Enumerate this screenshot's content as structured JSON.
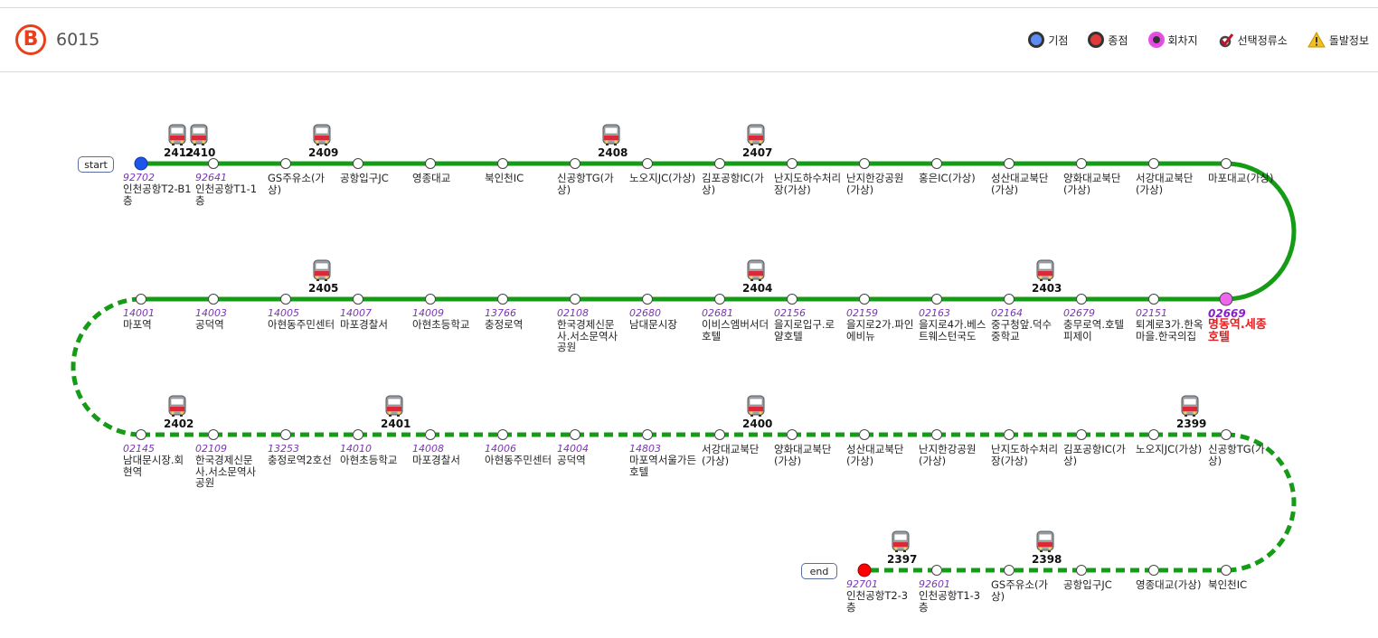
{
  "header": {
    "logo_letter": "B",
    "route_number": "6015"
  },
  "legend": [
    {
      "label": "기점",
      "icon": "start-point-icon",
      "color": "#5c8df5"
    },
    {
      "label": "종점",
      "icon": "end-point-icon",
      "color": "#e03a3a"
    },
    {
      "label": "회차지",
      "icon": "turnaround-icon",
      "color": "#e84ee8"
    },
    {
      "label": "선택정류소",
      "icon": "selected-stop-icon",
      "color": "#c0142a"
    },
    {
      "label": "돌발정보",
      "icon": "warning-icon",
      "color": "#f0c020"
    }
  ],
  "markers": {
    "start": "start",
    "end": "end"
  },
  "colors": {
    "route_line": "#159b15",
    "start_stop": "#1c56e8",
    "end_stop": "#ff0000",
    "turn_stop": "#ee66ee"
  },
  "rows": [
    {
      "stops": [
        {
          "code": "92702",
          "name": "인천공항T2-B1층",
          "type": "start"
        },
        {
          "code": "92641",
          "name": "인천공항T1-1층"
        },
        {
          "code": "",
          "name": "GS주유소(가상)"
        },
        {
          "code": "",
          "name": "공항입구JC"
        },
        {
          "code": "",
          "name": "영종대교"
        },
        {
          "code": "",
          "name": "북인천IC"
        },
        {
          "code": "",
          "name": "신공항TG(가상)"
        },
        {
          "code": "",
          "name": "노오지JC(가상)"
        },
        {
          "code": "",
          "name": "김포공항IC(가상)"
        },
        {
          "code": "",
          "name": "난지도하수처리장(가상)"
        },
        {
          "code": "",
          "name": "난지한강공원(가상)"
        },
        {
          "code": "",
          "name": "홍은IC(가상)"
        },
        {
          "code": "",
          "name": "성산대교북단(가상)"
        },
        {
          "code": "",
          "name": "양화대교북단(가상)"
        },
        {
          "code": "",
          "name": "서강대교북단(가상)"
        },
        {
          "code": "",
          "name": "마포대교(가상)"
        }
      ],
      "buses": [
        {
          "num": "2412",
          "slot": 0.5
        },
        {
          "num": "2410",
          "slot": 0.8
        },
        {
          "num": "2409",
          "slot": 2.5
        },
        {
          "num": "2408",
          "slot": 6.5
        },
        {
          "num": "2407",
          "slot": 8.5
        }
      ]
    },
    {
      "stops": [
        {
          "code": "02669",
          "name": "명동역.세종호텔",
          "type": "turn"
        },
        {
          "code": "02151",
          "name": "퇴계로3가.한옥마을.한국의집"
        },
        {
          "code": "02679",
          "name": "충무로역.호텔피제이"
        },
        {
          "code": "02164",
          "name": "중구청앞.덕수중학교"
        },
        {
          "code": "02163",
          "name": "을지로4가.베스트웨스턴국도"
        },
        {
          "code": "02159",
          "name": "을지로2가.파인에비뉴"
        },
        {
          "code": "02156",
          "name": "을지로입구.로얄호텔"
        },
        {
          "code": "02681",
          "name": "이비스엠버서더호텔"
        },
        {
          "code": "02680",
          "name": "남대문시장"
        },
        {
          "code": "02108",
          "name": "한국경제신문사.서소문역사공원"
        },
        {
          "code": "13766",
          "name": "충정로역"
        },
        {
          "code": "14009",
          "name": "아현초등학교"
        },
        {
          "code": "14007",
          "name": "마포경찰서"
        },
        {
          "code": "14005",
          "name": "아현동주민센터"
        },
        {
          "code": "14003",
          "name": "공덕역"
        },
        {
          "code": "14001",
          "name": "마포역"
        }
      ],
      "buses": [
        {
          "num": "2403",
          "slot": 2.5
        },
        {
          "num": "2404",
          "slot": 6.5
        },
        {
          "num": "2405",
          "slot": 12.5
        }
      ]
    },
    {
      "stops": [
        {
          "code": "02145",
          "name": "남대문시장.회현역"
        },
        {
          "code": "02109",
          "name": "한국경제신문사.서소문역사공원"
        },
        {
          "code": "13253",
          "name": "충정로역2호선"
        },
        {
          "code": "14010",
          "name": "아현초등학교"
        },
        {
          "code": "14008",
          "name": "마포경찰서"
        },
        {
          "code": "14006",
          "name": "아현동주민센터"
        },
        {
          "code": "14004",
          "name": "공덕역"
        },
        {
          "code": "14803",
          "name": "마포역서울가든호텔"
        },
        {
          "code": "",
          "name": "서강대교북단(가상)"
        },
        {
          "code": "",
          "name": "양화대교북단(가상)"
        },
        {
          "code": "",
          "name": "성산대교북단(가상)"
        },
        {
          "code": "",
          "name": "난지한강공원(가상)"
        },
        {
          "code": "",
          "name": "난지도하수처리장(가상)"
        },
        {
          "code": "",
          "name": "김포공항IC(가상)"
        },
        {
          "code": "",
          "name": "노오지JC(가상)"
        },
        {
          "code": "",
          "name": "신공항TG(가상)"
        }
      ],
      "buses": [
        {
          "num": "2402",
          "slot": 0.5
        },
        {
          "num": "2401",
          "slot": 3.5
        },
        {
          "num": "2400",
          "slot": 8.5
        },
        {
          "num": "2399",
          "slot": 14.5
        }
      ]
    },
    {
      "offset": 10,
      "stops": [
        {
          "code": "92701",
          "name": "인천공항T2-3층",
          "type": "end"
        },
        {
          "code": "92601",
          "name": "인천공항T1-3층"
        },
        {
          "code": "",
          "name": "GS주유소(가상)"
        },
        {
          "code": "",
          "name": "공항입구JC"
        },
        {
          "code": "",
          "name": "영종대교(가상)"
        },
        {
          "code": "",
          "name": "북인천IC"
        }
      ],
      "buses": [
        {
          "num": "2397",
          "slot": 0.5
        },
        {
          "num": "2398",
          "slot": 2.5
        }
      ]
    }
  ]
}
